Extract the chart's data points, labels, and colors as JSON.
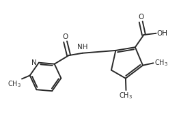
{
  "bg_color": "#ffffff",
  "line_color": "#2a2a2a",
  "line_width": 1.4,
  "font_size": 7.5,
  "xlim": [
    0,
    10
  ],
  "ylim": [
    0,
    6.5
  ]
}
